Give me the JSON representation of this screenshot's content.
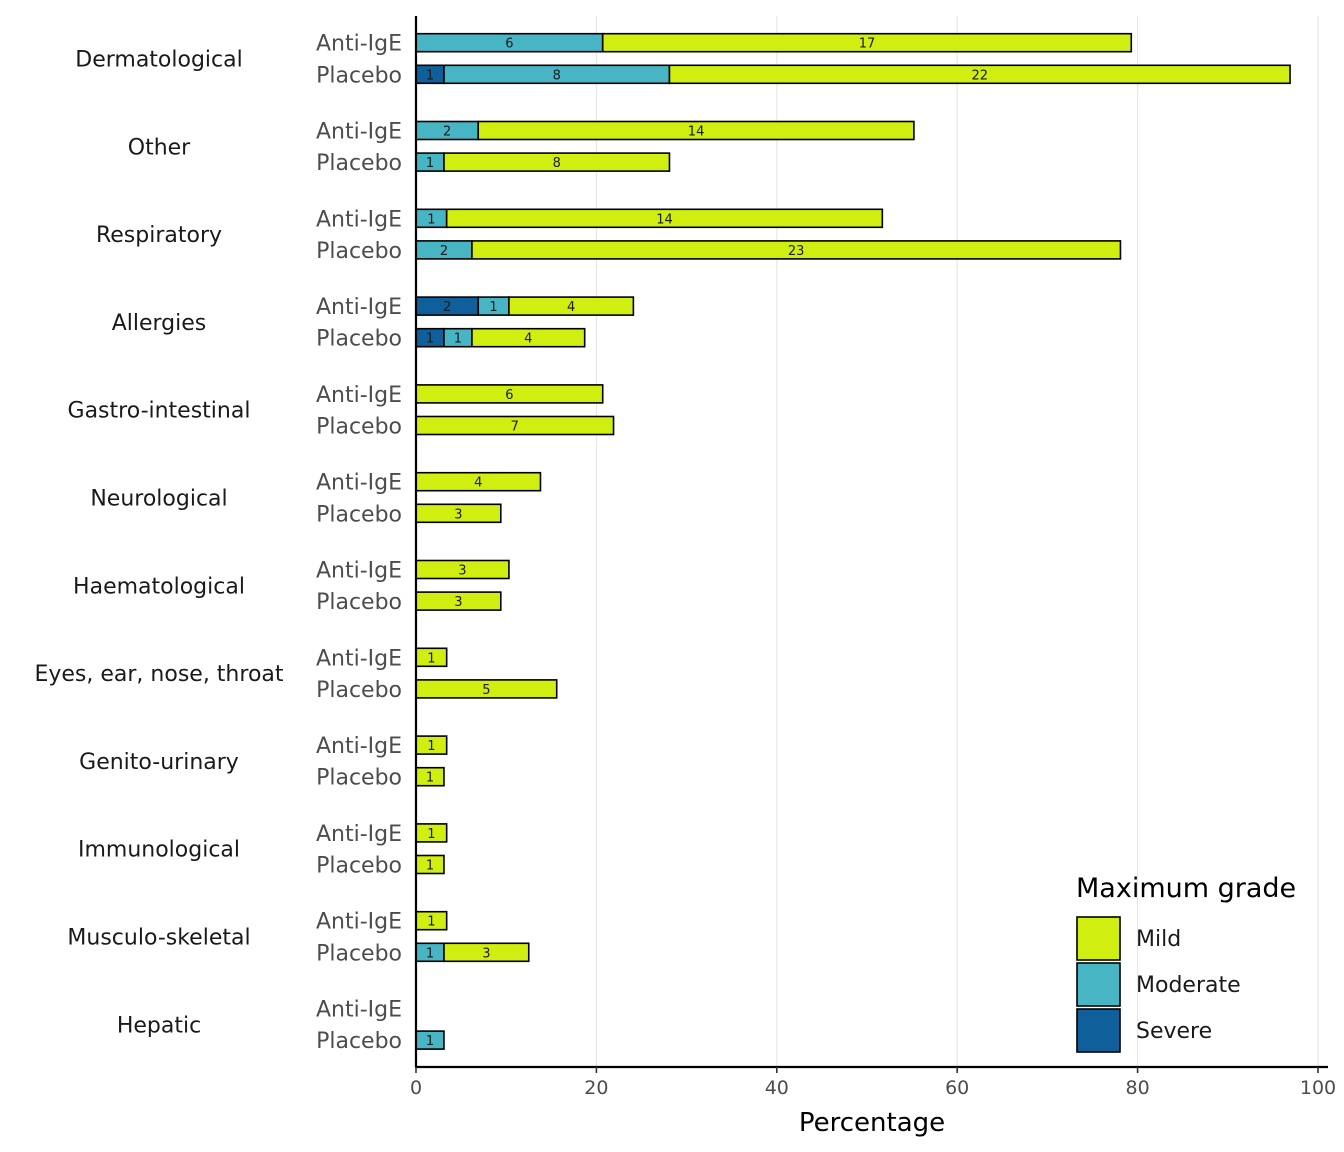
{
  "chart_data": {
    "type": "bar",
    "orientation": "horizontal",
    "stacked": true,
    "xlabel": "Percentage",
    "xlim": [
      0,
      100
    ],
    "xticks": [
      0,
      20,
      40,
      60,
      80,
      100
    ],
    "grid": true,
    "arms": [
      "Anti-IgE",
      "Placebo"
    ],
    "grades": [
      {
        "name": "Severe",
        "color": "#0e5f9a"
      },
      {
        "name": "Moderate",
        "color": "#48b5c4"
      },
      {
        "name": "Mild",
        "color": "#d0ef10"
      }
    ],
    "legend": {
      "title": "Maximum grade",
      "placement": "bottom-right",
      "order": [
        "Mild",
        "Moderate",
        "Severe"
      ]
    },
    "categories": [
      {
        "name": "Dermatological",
        "Anti-IgE": {
          "pct": {
            "Severe": 0,
            "Moderate": 20.7,
            "Mild": 58.6
          },
          "counts": {
            "Severe": null,
            "Moderate": "6",
            "Mild": "17"
          }
        },
        "Placebo": {
          "pct": {
            "Severe": 3.1,
            "Moderate": 25.0,
            "Mild": 68.8
          },
          "counts": {
            "Severe": "1",
            "Moderate": "8",
            "Mild": "22"
          }
        }
      },
      {
        "name": "Other",
        "Anti-IgE": {
          "pct": {
            "Severe": 0,
            "Moderate": 6.9,
            "Mild": 48.3
          },
          "counts": {
            "Severe": null,
            "Moderate": "2",
            "Mild": "14"
          }
        },
        "Placebo": {
          "pct": {
            "Severe": 0,
            "Moderate": 3.1,
            "Mild": 25.0
          },
          "counts": {
            "Severe": null,
            "Moderate": "1",
            "Mild": "8"
          }
        }
      },
      {
        "name": "Respiratory",
        "Anti-IgE": {
          "pct": {
            "Severe": 0,
            "Moderate": 3.4,
            "Mild": 48.3
          },
          "counts": {
            "Severe": null,
            "Moderate": "1",
            "Mild": "14"
          }
        },
        "Placebo": {
          "pct": {
            "Severe": 0,
            "Moderate": 6.2,
            "Mild": 71.9
          },
          "counts": {
            "Severe": null,
            "Moderate": "2",
            "Mild": "23"
          }
        }
      },
      {
        "name": "Allergies",
        "Anti-IgE": {
          "pct": {
            "Severe": 6.9,
            "Moderate": 3.4,
            "Mild": 13.8
          },
          "counts": {
            "Severe": "2",
            "Moderate": "1",
            "Mild": "4"
          }
        },
        "Placebo": {
          "pct": {
            "Severe": 3.1,
            "Moderate": 3.1,
            "Mild": 12.5
          },
          "counts": {
            "Severe": "1",
            "Moderate": "1",
            "Mild": "4"
          }
        }
      },
      {
        "name": "Gastro-intestinal",
        "Anti-IgE": {
          "pct": {
            "Severe": 0,
            "Moderate": 0,
            "Mild": 20.7
          },
          "counts": {
            "Severe": null,
            "Moderate": null,
            "Mild": "6"
          }
        },
        "Placebo": {
          "pct": {
            "Severe": 0,
            "Moderate": 0,
            "Mild": 21.9
          },
          "counts": {
            "Severe": null,
            "Moderate": null,
            "Mild": "7"
          }
        }
      },
      {
        "name": "Neurological",
        "Anti-IgE": {
          "pct": {
            "Severe": 0,
            "Moderate": 0,
            "Mild": 13.8
          },
          "counts": {
            "Severe": null,
            "Moderate": null,
            "Mild": "4"
          }
        },
        "Placebo": {
          "pct": {
            "Severe": 0,
            "Moderate": 0,
            "Mild": 9.4
          },
          "counts": {
            "Severe": null,
            "Moderate": null,
            "Mild": "3"
          }
        }
      },
      {
        "name": "Haematological",
        "Anti-IgE": {
          "pct": {
            "Severe": 0,
            "Moderate": 0,
            "Mild": 10.3
          },
          "counts": {
            "Severe": null,
            "Moderate": null,
            "Mild": "3"
          }
        },
        "Placebo": {
          "pct": {
            "Severe": 0,
            "Moderate": 0,
            "Mild": 9.4
          },
          "counts": {
            "Severe": null,
            "Moderate": null,
            "Mild": "3"
          }
        }
      },
      {
        "name": "Eyes, ear, nose, throat",
        "Anti-IgE": {
          "pct": {
            "Severe": 0,
            "Moderate": 0,
            "Mild": 3.4
          },
          "counts": {
            "Severe": null,
            "Moderate": null,
            "Mild": "1"
          }
        },
        "Placebo": {
          "pct": {
            "Severe": 0,
            "Moderate": 0,
            "Mild": 15.6
          },
          "counts": {
            "Severe": null,
            "Moderate": null,
            "Mild": "5"
          }
        }
      },
      {
        "name": "Genito-urinary",
        "Anti-IgE": {
          "pct": {
            "Severe": 0,
            "Moderate": 0,
            "Mild": 3.4
          },
          "counts": {
            "Severe": null,
            "Moderate": null,
            "Mild": "1"
          }
        },
        "Placebo": {
          "pct": {
            "Severe": 0,
            "Moderate": 0,
            "Mild": 3.1
          },
          "counts": {
            "Severe": null,
            "Moderate": null,
            "Mild": "1"
          }
        }
      },
      {
        "name": "Immunological",
        "Anti-IgE": {
          "pct": {
            "Severe": 0,
            "Moderate": 0,
            "Mild": 3.4
          },
          "counts": {
            "Severe": null,
            "Moderate": null,
            "Mild": "1"
          }
        },
        "Placebo": {
          "pct": {
            "Severe": 0,
            "Moderate": 0,
            "Mild": 3.1
          },
          "counts": {
            "Severe": null,
            "Moderate": null,
            "Mild": "1"
          }
        }
      },
      {
        "name": "Musculo-skeletal",
        "Anti-IgE": {
          "pct": {
            "Severe": 0,
            "Moderate": 0,
            "Mild": 3.4
          },
          "counts": {
            "Severe": null,
            "Moderate": null,
            "Mild": "1"
          }
        },
        "Placebo": {
          "pct": {
            "Severe": 0,
            "Moderate": 3.1,
            "Mild": 9.4
          },
          "counts": {
            "Severe": null,
            "Moderate": "1",
            "Mild": "3"
          }
        }
      },
      {
        "name": "Hepatic",
        "Anti-IgE": {
          "pct": {
            "Severe": 0,
            "Moderate": 0,
            "Mild": 0
          },
          "counts": {
            "Severe": null,
            "Moderate": null,
            "Mild": null
          }
        },
        "Placebo": {
          "pct": {
            "Severe": 0,
            "Moderate": 3.1,
            "Mild": 0
          },
          "counts": {
            "Severe": null,
            "Moderate": "1",
            "Mild": null
          }
        }
      }
    ]
  }
}
